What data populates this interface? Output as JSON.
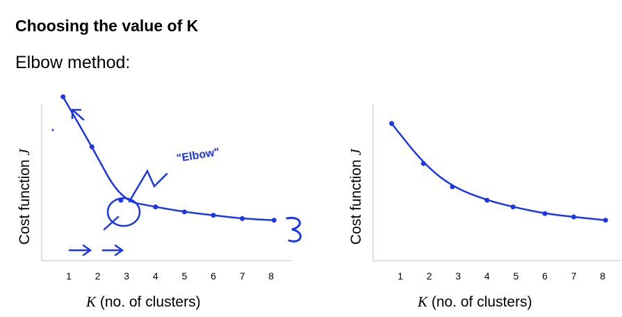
{
  "slide": {
    "title": "Choosing the value of K",
    "subtitle": "Elbow method:"
  },
  "chart_data": [
    {
      "type": "line",
      "ylabel_text": "Cost function ",
      "ylabel_symbol": "J",
      "xlabel_symbol": "K",
      "xlabel_text": " (no. of clusters)",
      "x_ticks": [
        "1",
        "2",
        "3",
        "4",
        "5",
        "6",
        "7",
        "8"
      ],
      "xlim": [
        0.3,
        8.6
      ],
      "ylim": [
        0,
        5
      ],
      "x": [
        0.8,
        1.8,
        2.8,
        4.0,
        5.0,
        6.0,
        7.0,
        8.1
      ],
      "y": [
        4.6,
        3.1,
        1.5,
        1.3,
        1.15,
        1.05,
        0.95,
        0.9
      ],
      "annotation": "\"Elbow\"",
      "ink_color": "#1a36e8"
    },
    {
      "type": "line",
      "ylabel_text": "Cost function ",
      "ylabel_symbol": "J",
      "xlabel_symbol": "K",
      "xlabel_text": " (no. of clusters)",
      "x_ticks": [
        "1",
        "2",
        "3",
        "4",
        "5",
        "6",
        "7",
        "8"
      ],
      "xlim": [
        0.3,
        8.6
      ],
      "ylim": [
        0,
        5
      ],
      "x": [
        0.7,
        1.8,
        2.8,
        4.0,
        4.9,
        6.0,
        7.0,
        8.1
      ],
      "y": [
        3.8,
        2.6,
        1.9,
        1.5,
        1.3,
        1.1,
        1.0,
        0.9
      ],
      "ink_color": "#1a36e8"
    }
  ]
}
